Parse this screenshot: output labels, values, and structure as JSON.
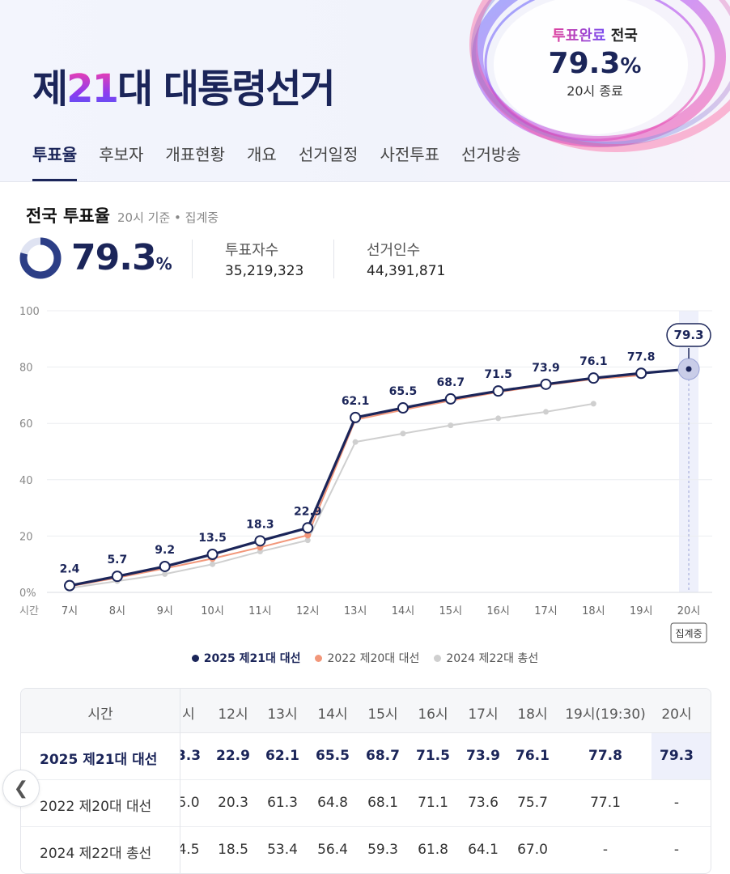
{
  "header": {
    "title_prefix": "제",
    "title_number": "21",
    "title_suffix": "대 대통령선거",
    "badge_done": "투표완료",
    "badge_region": " 전국",
    "badge_rate": "79.3",
    "badge_pct": "%",
    "badge_end": "20시 종료"
  },
  "tabs": [
    "투표율",
    "후보자",
    "개표현황",
    "개요",
    "선거일정",
    "사전투표",
    "선거방송"
  ],
  "summary": {
    "title": "전국 투표율",
    "subtitle": "20시 기준 • 집계중",
    "rate": "79.3",
    "pct": "%",
    "voters_label": "투표자수",
    "voters_value": "35,219,323",
    "electorate_label": "선거인수",
    "electorate_value": "44,391,871"
  },
  "colors": {
    "navy": "#1b2559",
    "salmon": "#f2977a",
    "gray": "#cfcfcf",
    "highlight": "#eef0fb"
  },
  "chart_data": {
    "type": "line",
    "x_axis_label": "시간",
    "categories": [
      "7시",
      "8시",
      "9시",
      "10시",
      "11시",
      "12시",
      "13시",
      "14시",
      "15시",
      "16시",
      "17시",
      "18시",
      "19시",
      "20시"
    ],
    "ylim": [
      0,
      100
    ],
    "yticks": [
      "0%",
      "20",
      "40",
      "60",
      "80",
      "100"
    ],
    "grid": true,
    "current_badge": "79.3",
    "current_tag": "집계중",
    "series": [
      {
        "name": "2025 제21대 대선",
        "values": [
          2.4,
          5.7,
          9.2,
          13.5,
          18.3,
          22.9,
          62.1,
          65.5,
          68.7,
          71.5,
          73.9,
          76.1,
          77.8,
          79.3
        ]
      },
      {
        "name": "2022 제20대 대선",
        "values": [
          2.1,
          5.2,
          8.5,
          12.0,
          16.0,
          20.3,
          61.3,
          64.8,
          68.1,
          71.1,
          73.6,
          75.7,
          77.1,
          null
        ]
      },
      {
        "name": "2024 제22대 총선",
        "values": [
          1.5,
          4.0,
          6.5,
          10.0,
          14.5,
          18.5,
          53.4,
          56.4,
          59.3,
          61.8,
          64.1,
          67.0,
          null,
          null
        ]
      }
    ],
    "labels_main": [
      "2.4",
      "5.7",
      "9.2",
      "13.5",
      "18.3",
      "22.9",
      "62.1",
      "65.5",
      "68.7",
      "71.5",
      "73.9",
      "76.1",
      "77.8"
    ]
  },
  "table": {
    "header_label": "시간",
    "columns": [
      "시",
      "12시",
      "13시",
      "14시",
      "15시",
      "16시",
      "17시",
      "18시",
      "19시(19:30)",
      "20시"
    ],
    "rows": [
      {
        "name": "2025 제21대 대선",
        "values": [
          "3.3",
          "22.9",
          "62.1",
          "65.5",
          "68.7",
          "71.5",
          "73.9",
          "76.1",
          "77.8",
          "79.3"
        ]
      },
      {
        "name": "2022 제20대 대선",
        "values": [
          "5.0",
          "20.3",
          "61.3",
          "64.8",
          "68.1",
          "71.1",
          "73.6",
          "75.7",
          "77.1",
          "-"
        ]
      },
      {
        "name": "2024 제22대 총선",
        "values": [
          "4.5",
          "18.5",
          "53.4",
          "56.4",
          "59.3",
          "61.8",
          "64.1",
          "67.0",
          "-",
          "-"
        ]
      }
    ],
    "scroll_icon": "chevron-left-icon"
  }
}
